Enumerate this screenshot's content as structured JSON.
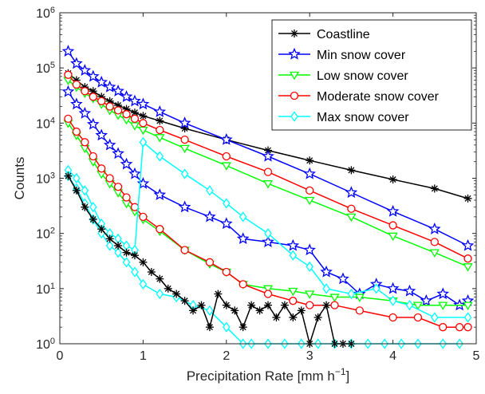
{
  "chart_data": {
    "type": "line",
    "title": "",
    "xlabel": "Precipitation Rate [mm h",
    "xlabel_sup": "−1",
    "xlabel_close": "]",
    "ylabel": "Counts",
    "xlim": [
      0,
      5
    ],
    "ylim": [
      1,
      1000000
    ],
    "yscale": "log",
    "grid": false,
    "legend_position": "top-right",
    "xticks": [
      {
        "v": 0,
        "label": "0"
      },
      {
        "v": 1,
        "label": "1"
      },
      {
        "v": 2,
        "label": "2"
      },
      {
        "v": 3,
        "label": "3"
      },
      {
        "v": 4,
        "label": "4"
      },
      {
        "v": 5,
        "label": "5"
      }
    ],
    "yticks": [
      {
        "v": 1,
        "base": "10",
        "exp": "0"
      },
      {
        "v": 10,
        "base": "10",
        "exp": "1"
      },
      {
        "v": 100,
        "base": "10",
        "exp": "2"
      },
      {
        "v": 1000,
        "base": "10",
        "exp": "3"
      },
      {
        "v": 10000,
        "base": "10",
        "exp": "4"
      },
      {
        "v": 100000,
        "base": "10",
        "exp": "5"
      },
      {
        "v": 1000000,
        "base": "10",
        "exp": "6"
      }
    ],
    "series": [
      {
        "name": "Coastline",
        "color": "#000000",
        "marker": "asterisk",
        "curve": "full",
        "x": [
          0.1,
          0.2,
          0.3,
          0.4,
          0.5,
          0.6,
          0.7,
          0.8,
          0.9,
          1.0,
          1.2,
          1.5,
          2.0,
          2.5,
          3.0,
          3.5,
          4.0,
          4.5,
          4.9
        ],
        "y": [
          80000,
          60000,
          45000,
          38000,
          30000,
          25000,
          21000,
          18000,
          15500,
          13500,
          11000,
          8000,
          5000,
          3200,
          2100,
          1400,
          950,
          650,
          430
        ]
      },
      {
        "name": "Min snow cover",
        "color": "#0000ff",
        "marker": "star",
        "curve": "upper",
        "x": [
          0.1,
          0.2,
          0.3,
          0.4,
          0.5,
          0.6,
          0.7,
          0.8,
          0.9,
          1.0,
          1.2,
          1.5,
          2.0,
          2.5,
          3.0,
          3.5,
          4.0,
          4.5,
          4.9
        ],
        "y": [
          200000,
          120000,
          90000,
          70000,
          55000,
          45000,
          38000,
          30000,
          25000,
          22000,
          16000,
          10000,
          5000,
          2500,
          1200,
          550,
          250,
          120,
          60
        ]
      },
      {
        "name": "Min snow cover",
        "color": "#0000ff",
        "marker": "star",
        "curve": "lower",
        "x": [
          0.1,
          0.2,
          0.3,
          0.4,
          0.5,
          0.6,
          0.7,
          0.8,
          0.9,
          1.0,
          1.2,
          1.5,
          1.8,
          2.0,
          2.2,
          2.5,
          2.8,
          3.0,
          3.2,
          3.4,
          3.6,
          3.8,
          4.0,
          4.2,
          4.4,
          4.6,
          4.8,
          4.9
        ],
        "y": [
          37000,
          22000,
          15000,
          9500,
          6000,
          4000,
          2800,
          1800,
          1200,
          800,
          500,
          300,
          200,
          150,
          80,
          70,
          60,
          50,
          20,
          15,
          8,
          12,
          10,
          9,
          6,
          8,
          5,
          6
        ]
      },
      {
        "name": "Low snow cover",
        "color": "#00ff00",
        "marker": "triangle-down",
        "curve": "upper",
        "x": [
          0.1,
          0.2,
          0.3,
          0.4,
          0.5,
          0.6,
          0.7,
          0.8,
          0.9,
          1.0,
          1.2,
          1.5,
          2.0,
          2.5,
          3.0,
          3.5,
          4.0,
          4.5,
          4.9
        ],
        "y": [
          60000,
          45000,
          35000,
          28000,
          22000,
          17000,
          14000,
          11500,
          9000,
          7500,
          5500,
          3500,
          1700,
          800,
          400,
          200,
          90,
          45,
          25
        ]
      },
      {
        "name": "Low snow cover",
        "color": "#00ff00",
        "marker": "triangle-down",
        "curve": "lower",
        "x": [
          0.1,
          0.2,
          0.3,
          0.4,
          0.5,
          0.6,
          0.7,
          0.8,
          0.9,
          1.0,
          1.2,
          1.5,
          1.8,
          2.0,
          2.2,
          2.5,
          2.8,
          3.0,
          3.3,
          3.6,
          4.0,
          4.3,
          4.6,
          4.9
        ],
        "y": [
          10000,
          6000,
          3500,
          2000,
          1200,
          800,
          550,
          350,
          250,
          180,
          110,
          50,
          28,
          20,
          12,
          10,
          9,
          8,
          7,
          7,
          6,
          5,
          5,
          5
        ]
      },
      {
        "name": "Moderate snow cover",
        "color": "#ff0000",
        "marker": "circle",
        "curve": "upper",
        "x": [
          0.1,
          0.2,
          0.3,
          0.4,
          0.5,
          0.6,
          0.7,
          0.8,
          0.9,
          1.0,
          1.2,
          1.5,
          2.0,
          2.5,
          3.0,
          3.5,
          4.0,
          4.5,
          4.9
        ],
        "y": [
          75000,
          50000,
          38000,
          30000,
          25000,
          20000,
          17000,
          14500,
          12000,
          10000,
          7500,
          5000,
          2500,
          1300,
          600,
          280,
          140,
          70,
          35
        ]
      },
      {
        "name": "Moderate snow cover",
        "color": "#ff0000",
        "marker": "circle",
        "curve": "lower",
        "x": [
          0.1,
          0.2,
          0.3,
          0.4,
          0.5,
          0.6,
          0.7,
          0.8,
          0.9,
          1.0,
          1.2,
          1.5,
          1.8,
          2.0,
          2.2,
          2.5,
          2.8,
          3.0,
          3.3,
          3.6,
          4.0,
          4.3,
          4.6,
          4.8,
          4.9
        ],
        "y": [
          12000,
          7000,
          4500,
          2500,
          1500,
          1000,
          700,
          450,
          300,
          200,
          120,
          50,
          30,
          20,
          12,
          8,
          6,
          5,
          5,
          4,
          3,
          3,
          2,
          2,
          2
        ]
      },
      {
        "name": "Max snow cover",
        "color": "#00ffff",
        "marker": "diamond",
        "curve": "upper",
        "x": [
          0.1,
          0.2,
          0.3,
          0.4,
          0.5,
          0.6,
          0.7,
          0.8,
          0.9,
          1.0,
          1.2,
          1.5,
          1.8,
          2.0,
          2.2,
          2.5,
          2.8,
          3.0,
          3.2,
          3.5,
          3.8,
          4.0,
          4.2,
          4.5,
          4.9
        ],
        "y": [
          1400,
          1000,
          600,
          300,
          150,
          100,
          80,
          60,
          50,
          4500,
          2500,
          1200,
          600,
          350,
          200,
          100,
          40,
          25,
          10,
          8,
          10,
          6,
          5,
          3,
          3
        ]
      },
      {
        "name": "Max snow cover",
        "color": "#00ffff",
        "marker": "diamond",
        "curve": "lower",
        "x": [
          0.1,
          0.2,
          0.3,
          0.4,
          0.5,
          0.6,
          0.7,
          0.8,
          0.9,
          1.0,
          1.2,
          1.4,
          1.6,
          1.8,
          2.0,
          2.2,
          2.3,
          2.5,
          2.7,
          2.9,
          3.1,
          3.3,
          3.5,
          3.7,
          3.9,
          4.1,
          4.3,
          4.6,
          4.8
        ],
        "y": [
          1100,
          650,
          350,
          180,
          100,
          60,
          45,
          30,
          20,
          12,
          8,
          7,
          5,
          4,
          2,
          1,
          1,
          1,
          1,
          1,
          1,
          1,
          1,
          1,
          1,
          1,
          1,
          1,
          1
        ]
      },
      {
        "name": "Coastline",
        "color": "#000000",
        "marker": "asterisk",
        "curve": "lower",
        "x": [
          0.1,
          0.2,
          0.3,
          0.4,
          0.5,
          0.6,
          0.7,
          0.8,
          0.9,
          1.0,
          1.1,
          1.2,
          1.3,
          1.4,
          1.5,
          1.6,
          1.7,
          1.8,
          1.9,
          2.0,
          2.1,
          2.2,
          2.3,
          2.4,
          2.5,
          2.6,
          2.7,
          2.8,
          2.9,
          3.0,
          3.1,
          3.2,
          3.3,
          3.4,
          3.5
        ],
        "y": [
          1100,
          600,
          300,
          180,
          120,
          80,
          60,
          45,
          40,
          30,
          20,
          15,
          10,
          8,
          6,
          4,
          5,
          2,
          8,
          5,
          4,
          2,
          5,
          4,
          5,
          3,
          5,
          3,
          4,
          1,
          3,
          5,
          1,
          1,
          1
        ]
      }
    ]
  }
}
